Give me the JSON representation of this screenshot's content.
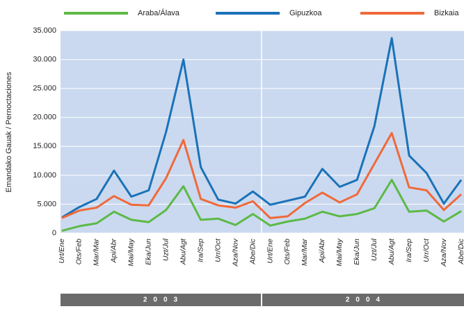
{
  "chart_data": {
    "type": "line",
    "y_label": "Emandako Gauak / Pernoctaciones",
    "categories": [
      "Urt/Ene",
      "Ots/Feb",
      "Mar/Mar",
      "Api/Abr",
      "Mai/May",
      "Eka/Jun",
      "Uzt/Jul",
      "Abu/Agt",
      "Ira/Sep",
      "Urr/Oct",
      "Aza/Nov",
      "Abe/Dic",
      "Urt/Ene",
      "Ots/Feb",
      "Mar/Mar",
      "Api/Abr",
      "Mai/May",
      "Eka/Jun",
      "Uzt/Jul",
      "Abu/Agt",
      "Ira/Sep",
      "Urr/Oct",
      "Aza/Nov",
      "Abe/Dic"
    ],
    "groups": [
      "2003",
      "2004"
    ],
    "series": [
      {
        "name": "Araba/Álava",
        "color": "#5cb946",
        "values": [
          400,
          1200,
          1700,
          3700,
          2300,
          1900,
          4000,
          8100,
          2300,
          2500,
          1400,
          3300,
          1300,
          2000,
          2500,
          3700,
          2900,
          3300,
          4300,
          9200,
          3700,
          3900,
          2000,
          3800
        ]
      },
      {
        "name": "Gipuzkoa",
        "color": "#1a72b8",
        "values": [
          2700,
          4500,
          5900,
          10800,
          6300,
          7400,
          17500,
          30000,
          11400,
          5800,
          5100,
          7200,
          4900,
          5600,
          6300,
          11100,
          8000,
          9200,
          18500,
          33700,
          13400,
          10400,
          5100,
          9200
        ]
      },
      {
        "name": "Bizkaia",
        "color": "#f0693a",
        "values": [
          2600,
          3900,
          4400,
          6400,
          4900,
          4800,
          9500,
          16100,
          5900,
          4800,
          4400,
          5500,
          2600,
          2900,
          5200,
          7000,
          5300,
          6700,
          12000,
          17300,
          7900,
          7400,
          4000,
          6700
        ]
      }
    ],
    "ylim": [
      0,
      35000
    ],
    "yticks": [
      0,
      {
        "value": 5000,
        "label": "5.000"
      },
      {
        "value": 10000,
        "label": "10.000"
      },
      {
        "value": 15000,
        "label": "15.000"
      },
      {
        "value": 20000,
        "label": "20.000"
      },
      {
        "value": 25000,
        "label": "25.000"
      },
      {
        "value": 30000,
        "label": "30.000"
      },
      {
        "value": 35000,
        "label": "35.000"
      }
    ],
    "grid": true
  }
}
